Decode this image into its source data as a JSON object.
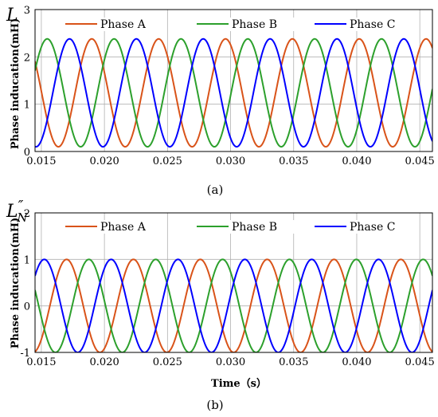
{
  "chart_data": [
    {
      "type": "line",
      "panel_label": "(a)",
      "symbol": "L",
      "ylabel": "Phase inducation(mH)",
      "xlabel": "",
      "xlim": [
        0.0145,
        0.046
      ],
      "ylim": [
        0,
        3
      ],
      "xticks": [
        "0.015",
        "0.020",
        "0.025",
        "0.030",
        "0.035",
        "0.040",
        "0.045"
      ],
      "yticks": [
        "0",
        "1",
        "2",
        "3"
      ],
      "grid": true,
      "legend_position": "top-inside",
      "period_s": 0.0053,
      "phase_a_peak_time_s": 0.019,
      "offset_mH": 1.24,
      "amplitude_mH": 1.14,
      "series": [
        {
          "name": "Phase A",
          "color": "#d95319",
          "phase_shift_deg": 0
        },
        {
          "name": "Phase B",
          "color": "#2ca02c",
          "phase_shift_deg": -120
        },
        {
          "name": "Phase C",
          "color": "#0000ff",
          "phase_shift_deg": 120
        }
      ]
    },
    {
      "type": "line",
      "panel_label": "(b)",
      "symbol": "L",
      "symbol_prime": "″",
      "symbol_sub": "N",
      "ylabel": "Phase inducation(mH)",
      "xlabel": "Time（s）",
      "xlim": [
        0.0145,
        0.046
      ],
      "ylim": [
        -1,
        2
      ],
      "xticks": [
        "0.015",
        "0.020",
        "0.025",
        "0.030",
        "0.035",
        "0.040",
        "0.045"
      ],
      "yticks": [
        "-1",
        "0",
        "1",
        "2"
      ],
      "grid": true,
      "legend_position": "top-inside",
      "period_s": 0.0053,
      "phase_a_peak_time_s": 0.017,
      "offset_mH": 0,
      "amplitude_mH": 1,
      "series": [
        {
          "name": "Phase A",
          "color": "#d95319",
          "phase_shift_deg": 0
        },
        {
          "name": "Phase B",
          "color": "#2ca02c",
          "phase_shift_deg": -120
        },
        {
          "name": "Phase C",
          "color": "#0000ff",
          "phase_shift_deg": 120
        }
      ]
    }
  ]
}
